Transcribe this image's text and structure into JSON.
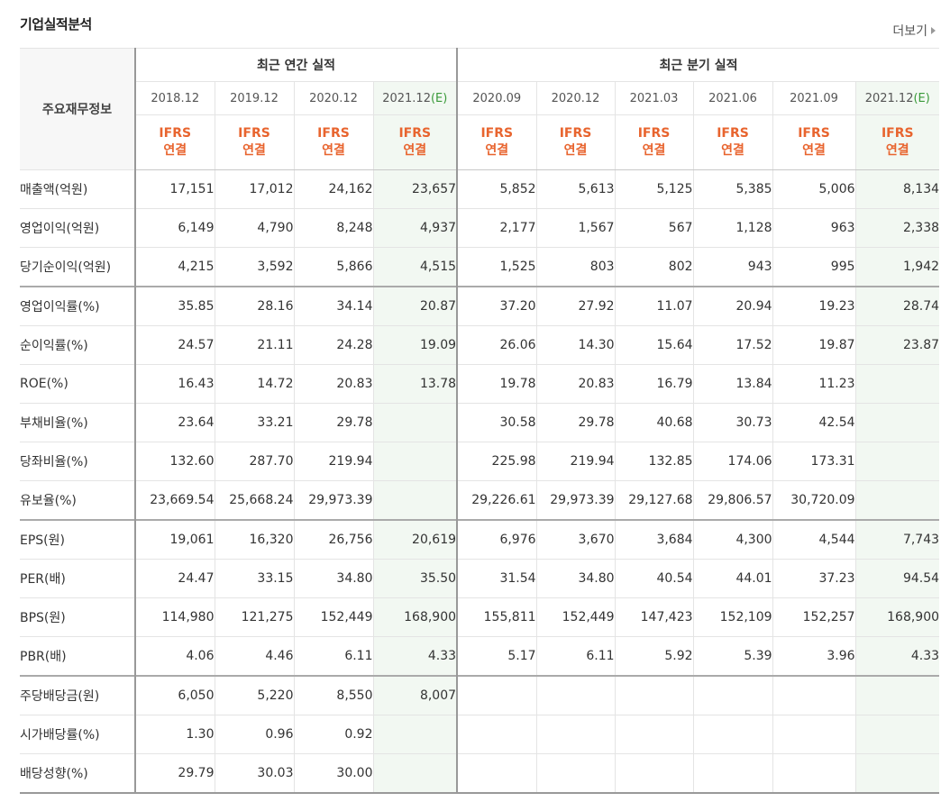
{
  "section_title": "기업실적분석",
  "more_link": "더보기",
  "table": {
    "row_header": "주요재무정보",
    "groups": [
      {
        "label": "최근 연간 실적",
        "span": 4
      },
      {
        "label": "최근 분기 실적",
        "span": 6
      }
    ],
    "periods": [
      {
        "label": "2018.12",
        "mark": "",
        "est": false
      },
      {
        "label": "2019.12",
        "mark": "",
        "est": false
      },
      {
        "label": "2020.12",
        "mark": "",
        "est": false
      },
      {
        "label": "2021.12",
        "mark": "(E)",
        "est": true
      },
      {
        "label": "2020.09",
        "mark": "",
        "est": false
      },
      {
        "label": "2020.12",
        "mark": "",
        "est": false
      },
      {
        "label": "2021.03",
        "mark": "",
        "est": false
      },
      {
        "label": "2021.06",
        "mark": "",
        "est": false
      },
      {
        "label": "2021.09",
        "mark": "",
        "est": false
      },
      {
        "label": "2021.12",
        "mark": "(E)",
        "est": true
      }
    ],
    "ifrs_line1": "IFRS",
    "ifrs_line2": "연결",
    "rows": [
      {
        "label": "매출액(억원)",
        "values": [
          "17,151",
          "17,012",
          "24,162",
          "23,657",
          "5,852",
          "5,613",
          "5,125",
          "5,385",
          "5,006",
          "8,134"
        ]
      },
      {
        "label": "영업이익(억원)",
        "values": [
          "6,149",
          "4,790",
          "8,248",
          "4,937",
          "2,177",
          "1,567",
          "567",
          "1,128",
          "963",
          "2,338"
        ]
      },
      {
        "label": "당기순이익(억원)",
        "values": [
          "4,215",
          "3,592",
          "5,866",
          "4,515",
          "1,525",
          "803",
          "802",
          "943",
          "995",
          "1,942"
        ]
      },
      {
        "label": "영업이익률(%)",
        "values": [
          "35.85",
          "28.16",
          "34.14",
          "20.87",
          "37.20",
          "27.92",
          "11.07",
          "20.94",
          "19.23",
          "28.74"
        ],
        "group_start": true
      },
      {
        "label": "순이익률(%)",
        "values": [
          "24.57",
          "21.11",
          "24.28",
          "19.09",
          "26.06",
          "14.30",
          "15.64",
          "17.52",
          "19.87",
          "23.87"
        ]
      },
      {
        "label": "ROE(%)",
        "values": [
          "16.43",
          "14.72",
          "20.83",
          "13.78",
          "19.78",
          "20.83",
          "16.79",
          "13.84",
          "11.23",
          ""
        ]
      },
      {
        "label": "부채비율(%)",
        "values": [
          "23.64",
          "33.21",
          "29.78",
          "",
          "30.58",
          "29.78",
          "40.68",
          "30.73",
          "42.54",
          ""
        ]
      },
      {
        "label": "당좌비율(%)",
        "values": [
          "132.60",
          "287.70",
          "219.94",
          "",
          "225.98",
          "219.94",
          "132.85",
          "174.06",
          "173.31",
          ""
        ]
      },
      {
        "label": "유보율(%)",
        "values": [
          "23,669.54",
          "25,668.24",
          "29,973.39",
          "",
          "29,226.61",
          "29,973.39",
          "29,127.68",
          "29,806.57",
          "30,720.09",
          ""
        ]
      },
      {
        "label": "EPS(원)",
        "values": [
          "19,061",
          "16,320",
          "26,756",
          "20,619",
          "6,976",
          "3,670",
          "3,684",
          "4,300",
          "4,544",
          "7,743"
        ],
        "group_start": true
      },
      {
        "label": "PER(배)",
        "values": [
          "24.47",
          "33.15",
          "34.80",
          "35.50",
          "31.54",
          "34.80",
          "40.54",
          "44.01",
          "37.23",
          "94.54"
        ]
      },
      {
        "label": "BPS(원)",
        "values": [
          "114,980",
          "121,275",
          "152,449",
          "168,900",
          "155,811",
          "152,449",
          "147,423",
          "152,109",
          "152,257",
          "168,900"
        ]
      },
      {
        "label": "PBR(배)",
        "values": [
          "4.06",
          "4.46",
          "6.11",
          "4.33",
          "5.17",
          "6.11",
          "5.92",
          "5.39",
          "3.96",
          "4.33"
        ]
      },
      {
        "label": "주당배당금(원)",
        "values": [
          "6,050",
          "5,220",
          "8,550",
          "8,007",
          "",
          "",
          "",
          "",
          "",
          ""
        ],
        "group_start": true
      },
      {
        "label": "시가배당률(%)",
        "values": [
          "1.30",
          "0.96",
          "0.92",
          "",
          "",
          "",
          "",
          "",
          "",
          ""
        ]
      },
      {
        "label": "배당성향(%)",
        "values": [
          "29.79",
          "30.03",
          "30.00",
          "",
          "",
          "",
          "",
          "",
          "",
          ""
        ]
      }
    ]
  }
}
